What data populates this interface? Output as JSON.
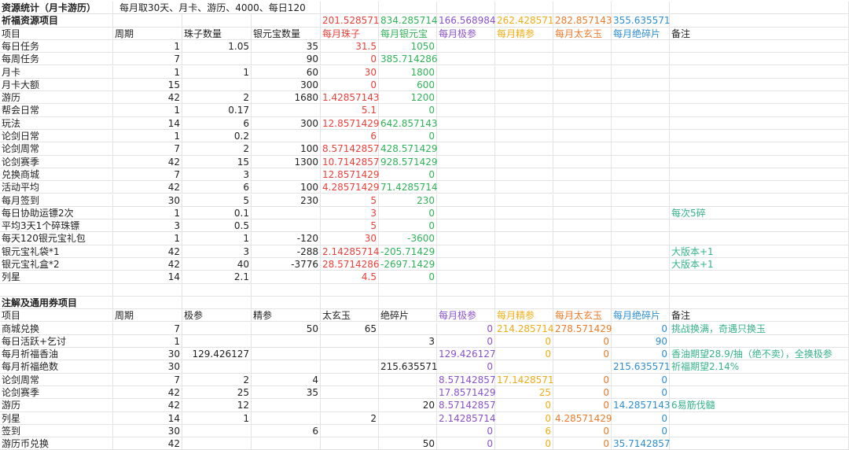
{
  "title": "资源统计（月卡游历）",
  "note_top": "每月取30天、月卡、游历、4000、每日120",
  "section1": {
    "title": "祈福资源项目",
    "totals": [
      "201.528571",
      "834.285714",
      "166.568984",
      "262.428571",
      "282.857143",
      "355.635571"
    ],
    "headers": [
      "项目",
      "周期",
      "珠子数量",
      "银元宝数量",
      "每月珠子",
      "每月银元宝",
      "每月极参",
      "每月精参",
      "每月太玄玉",
      "每月绝碎片",
      "备注"
    ],
    "rows": [
      [
        "每日任务",
        "1",
        "1.05",
        "35",
        "31.5",
        "1050",
        "",
        "",
        "",
        "",
        ""
      ],
      [
        "每周任务",
        "7",
        "",
        "90",
        "0",
        "385.714286",
        "",
        "",
        "",
        "",
        ""
      ],
      [
        "月卡",
        "1",
        "1",
        "60",
        "30",
        "1800",
        "",
        "",
        "",
        "",
        ""
      ],
      [
        "月卡大额",
        "15",
        "",
        "300",
        "0",
        "600",
        "",
        "",
        "",
        "",
        ""
      ],
      [
        "游历",
        "42",
        "2",
        "1680",
        "1.42857143",
        "1200",
        "",
        "",
        "",
        "",
        ""
      ],
      [
        "帮会日常",
        "1",
        "0.17",
        "",
        "5.1",
        "0",
        "",
        "",
        "",
        "",
        ""
      ],
      [
        "玩法",
        "14",
        "6",
        "300",
        "12.8571429",
        "642.857143",
        "",
        "",
        "",
        "",
        ""
      ],
      [
        "论剑日常",
        "1",
        "0.2",
        "",
        "6",
        "0",
        "",
        "",
        "",
        "",
        ""
      ],
      [
        "论剑周常",
        "7",
        "2",
        "100",
        "8.57142857",
        "428.571429",
        "",
        "",
        "",
        "",
        ""
      ],
      [
        "论剑赛季",
        "42",
        "15",
        "1300",
        "10.7142857",
        "928.571429",
        "",
        "",
        "",
        "",
        ""
      ],
      [
        "兑换商城",
        "7",
        "3",
        "",
        "12.8571429",
        "0",
        "",
        "",
        "",
        "",
        ""
      ],
      [
        "活动平均",
        "42",
        "6",
        "100",
        "4.28571429",
        "71.4285714",
        "",
        "",
        "",
        "",
        ""
      ],
      [
        "每月签到",
        "30",
        "5",
        "230",
        "5",
        "230",
        "",
        "",
        "",
        "",
        ""
      ],
      [
        "每日协助运镖2次",
        "1",
        "0.1",
        "",
        "3",
        "0",
        "",
        "",
        "",
        "",
        "每次5碎"
      ],
      [
        "平均3天1个碎珠镖",
        "3",
        "0.5",
        "",
        "5",
        "0",
        "",
        "",
        "",
        "",
        ""
      ],
      [
        "每天120银元宝礼包",
        "1",
        "1",
        "-120",
        "30",
        "-3600",
        "",
        "",
        "",
        "",
        ""
      ],
      [
        "银元宝礼袋*1",
        "42",
        "3",
        "-288",
        "2.14285714",
        "-205.71429",
        "",
        "",
        "",
        "",
        "大版本+1"
      ],
      [
        "银元宝礼盒*2",
        "42",
        "40",
        "-3776",
        "28.5714286",
        "-2697.1429",
        "",
        "",
        "",
        "",
        "大版本+1"
      ],
      [
        "列星",
        "14",
        "2.1",
        "",
        "4.5",
        "0",
        "",
        "",
        "",
        "",
        ""
      ]
    ]
  },
  "section2": {
    "title": "注解及通用券项目",
    "headers": [
      "项目",
      "周期",
      "极参",
      "精参",
      "太玄玉",
      "绝碎片",
      "每月极参",
      "每月精参",
      "每月太玄玉",
      "每月绝碎片",
      "备注"
    ],
    "rows": [
      [
        "商城兑换",
        "7",
        "",
        "50",
        "65",
        "",
        "0",
        "214.285714",
        "278.571429",
        "0",
        "挑战换满，奇遇只换玉"
      ],
      [
        "每日活跃+乞讨",
        "1",
        "",
        "",
        "",
        "3",
        "0",
        "0",
        "0",
        "90",
        ""
      ],
      [
        "每月祈福香油",
        "30",
        "129.426127",
        "",
        "",
        "",
        "129.426127",
        "0",
        "0",
        "0",
        "香油期望28.9/抽（绝不卖），全换极参"
      ],
      [
        "每月祈福绝数",
        "30",
        "",
        "",
        "",
        "215.635571",
        "0",
        "",
        "",
        "215.635571",
        "祈福期望2.14%"
      ],
      [
        "论剑周常",
        "7",
        "2",
        "4",
        "",
        "",
        "8.57142857",
        "17.1428571",
        "0",
        "0",
        ""
      ],
      [
        "论剑赛季",
        "42",
        "25",
        "35",
        "",
        "",
        "17.8571429",
        "25",
        "0",
        "0",
        ""
      ],
      [
        "游历",
        "42",
        "12",
        "",
        "",
        "20",
        "8.57142857",
        "0",
        "0",
        "14.2857143",
        "6易筋伐髓"
      ],
      [
        "列星",
        "14",
        "1",
        "",
        "2",
        "",
        "2.14285714",
        "0",
        "4.28571429",
        "0",
        ""
      ],
      [
        "签到",
        "30",
        "",
        "6",
        "",
        "",
        "0",
        "6",
        "0",
        "0",
        ""
      ],
      [
        "游历币兑换",
        "42",
        "",
        "",
        "",
        "50",
        "0",
        "0",
        "0",
        "35.7142857",
        ""
      ]
    ]
  },
  "colors": {
    "red": "#e8403a",
    "green": "#2fb358",
    "purple": "#8a52c9",
    "gold": "#f0ac15",
    "orange": "#eb7b2b",
    "blue": "#2e8ed0",
    "teal": "#36b389"
  }
}
